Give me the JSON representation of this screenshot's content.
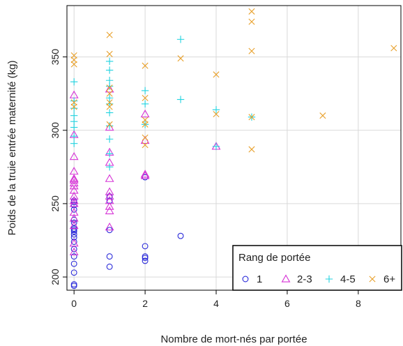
{
  "chart_data": {
    "type": "scatter",
    "title": "",
    "xlabel": "Nombre de mort-nés par portée",
    "ylabel": "Poids de la truie entrée maternité (kg)",
    "xlim": [
      -0.2,
      9.2
    ],
    "ylim": [
      191,
      385
    ],
    "x_ticks": [
      0,
      2,
      4,
      6,
      8
    ],
    "y_ticks": [
      200,
      250,
      300,
      350
    ],
    "grid": true,
    "legend": {
      "title": "Rang de portée",
      "placement": "bottom-right"
    },
    "series": [
      {
        "name": "1",
        "marker": "circle",
        "color": "#2b2bd9",
        "points": [
          [
            0,
            194
          ],
          [
            0,
            195
          ],
          [
            0,
            203
          ],
          [
            0,
            209
          ],
          [
            0,
            214
          ],
          [
            0,
            219
          ],
          [
            0,
            224
          ],
          [
            0,
            227
          ],
          [
            0,
            229
          ],
          [
            0,
            231
          ],
          [
            0,
            232
          ],
          [
            0,
            233
          ],
          [
            0,
            237
          ],
          [
            0,
            239
          ],
          [
            0,
            246
          ],
          [
            0,
            249
          ],
          [
            0,
            251
          ],
          [
            0,
            252
          ],
          [
            1,
            207
          ],
          [
            1,
            214
          ],
          [
            1,
            232
          ],
          [
            1,
            252
          ],
          [
            1,
            255
          ],
          [
            2,
            211
          ],
          [
            2,
            213
          ],
          [
            2,
            214
          ],
          [
            2,
            221
          ],
          [
            2,
            268
          ],
          [
            3,
            228
          ]
        ]
      },
      {
        "name": "2-3",
        "marker": "triangle",
        "color": "#d633d6",
        "points": [
          [
            0,
            217
          ],
          [
            0,
            223
          ],
          [
            0,
            235
          ],
          [
            0,
            240
          ],
          [
            0,
            244
          ],
          [
            0,
            250
          ],
          [
            0,
            252
          ],
          [
            0,
            255
          ],
          [
            0,
            259
          ],
          [
            0,
            262
          ],
          [
            0,
            264
          ],
          [
            0,
            266
          ],
          [
            0,
            267
          ],
          [
            0,
            272
          ],
          [
            0,
            282
          ],
          [
            0,
            297
          ],
          [
            0,
            324
          ],
          [
            1,
            234
          ],
          [
            1,
            245
          ],
          [
            1,
            248
          ],
          [
            1,
            252
          ],
          [
            1,
            255
          ],
          [
            1,
            258
          ],
          [
            1,
            267
          ],
          [
            1,
            278
          ],
          [
            1,
            285
          ],
          [
            1,
            302
          ],
          [
            1,
            328
          ],
          [
            2,
            269
          ],
          [
            2,
            270
          ],
          [
            2,
            293
          ],
          [
            2,
            311
          ],
          [
            4,
            289
          ]
        ]
      },
      {
        "name": "4-5",
        "marker": "plus",
        "color": "#22d3e0",
        "points": [
          [
            0,
            291
          ],
          [
            0,
            296
          ],
          [
            0,
            302
          ],
          [
            0,
            306
          ],
          [
            0,
            310
          ],
          [
            0,
            315
          ],
          [
            0,
            320
          ],
          [
            0,
            333
          ],
          [
            1,
            275
          ],
          [
            1,
            284
          ],
          [
            1,
            294
          ],
          [
            1,
            303
          ],
          [
            1,
            312
          ],
          [
            1,
            318
          ],
          [
            1,
            322
          ],
          [
            1,
            330
          ],
          [
            1,
            334
          ],
          [
            1,
            341
          ],
          [
            1,
            347
          ],
          [
            2,
            304
          ],
          [
            2,
            318
          ],
          [
            2,
            327
          ],
          [
            3,
            321
          ],
          [
            3,
            362
          ],
          [
            4,
            289
          ],
          [
            4,
            314
          ],
          [
            5,
            309
          ]
        ]
      },
      {
        "name": "6+",
        "marker": "x",
        "color": "#e8a02a",
        "points": [
          [
            0,
            316
          ],
          [
            0,
            319
          ],
          [
            0,
            345
          ],
          [
            0,
            348
          ],
          [
            0,
            351
          ],
          [
            1,
            304
          ],
          [
            1,
            316
          ],
          [
            1,
            319
          ],
          [
            1,
            325
          ],
          [
            1,
            329
          ],
          [
            1,
            352
          ],
          [
            1,
            365
          ],
          [
            2,
            290
          ],
          [
            2,
            295
          ],
          [
            2,
            304
          ],
          [
            2,
            307
          ],
          [
            2,
            322
          ],
          [
            2,
            344
          ],
          [
            3,
            349
          ],
          [
            4,
            311
          ],
          [
            4,
            338
          ],
          [
            5,
            287
          ],
          [
            5,
            309
          ],
          [
            5,
            354
          ],
          [
            5,
            374
          ],
          [
            5,
            381
          ],
          [
            7,
            310
          ],
          [
            9,
            356
          ]
        ]
      }
    ]
  }
}
